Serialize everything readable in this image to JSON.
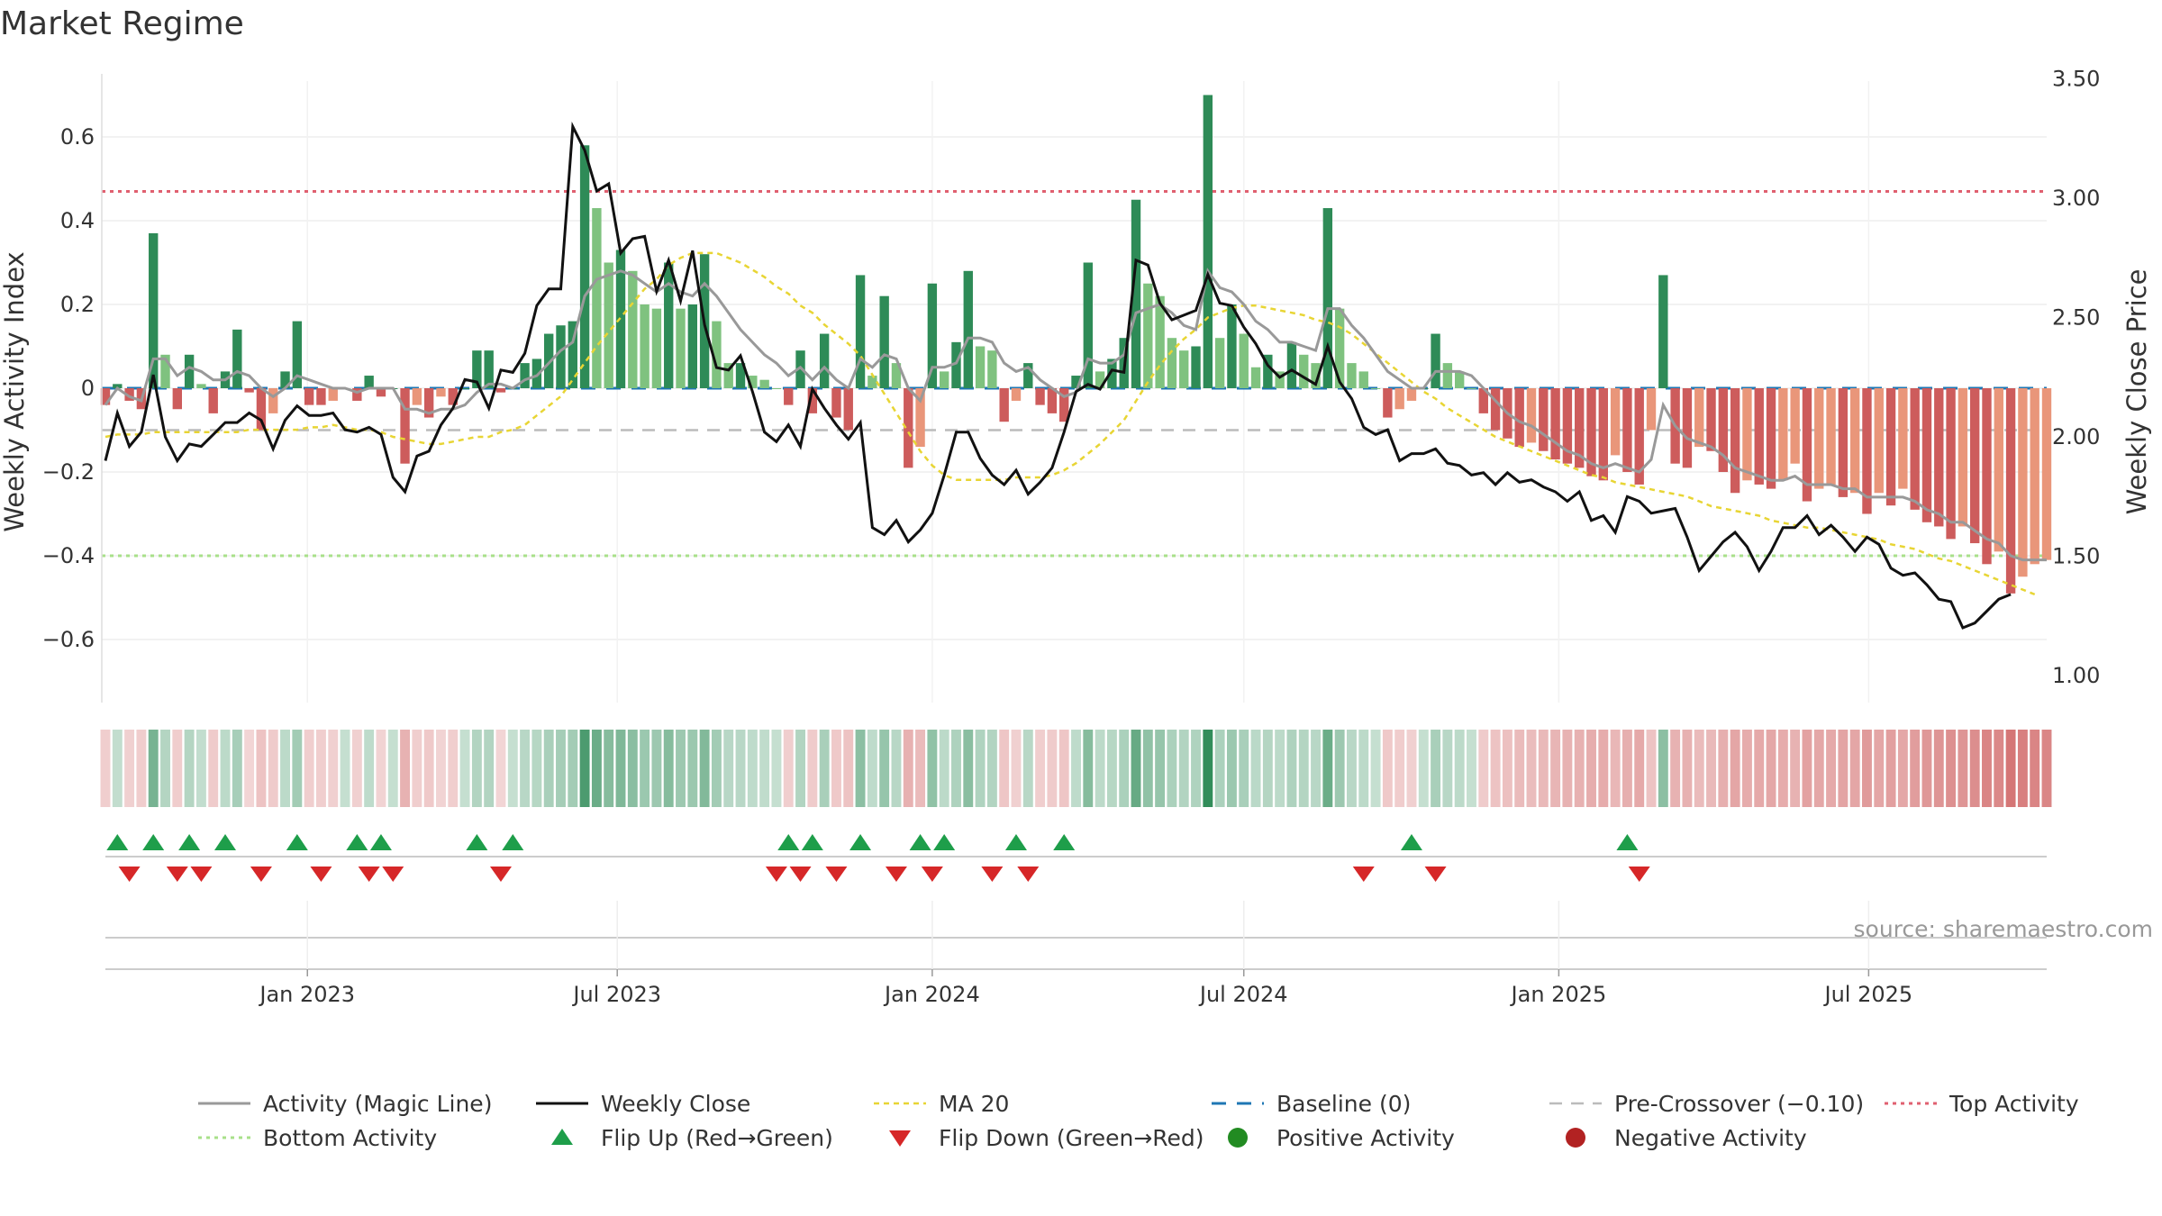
{
  "chart_data": {
    "type": "bar+line",
    "title": "Market Regime",
    "ylabel_left": "Weekly Activity Index",
    "ylabel_right": "Weekly Close Price",
    "source": "source: sharemaestro.com",
    "left_axis": {
      "ylim": [
        -0.75,
        0.75
      ],
      "ticks": [
        -0.6,
        -0.4,
        -0.2,
        0,
        0.2,
        0.4,
        0.6
      ],
      "tick_labels": [
        "−0.6",
        "−0.4",
        "−0.2",
        "0",
        "0.2",
        "0.4",
        "0.6"
      ]
    },
    "right_axis": {
      "ylim": [
        0.9,
        3.55
      ],
      "ticks": [
        1.0,
        1.5,
        2.0,
        2.5,
        3.0,
        3.5
      ],
      "tick_labels": [
        "1.00",
        "1.50",
        "2.00",
        "2.50",
        "3.00",
        "3.50"
      ]
    },
    "x_axis": {
      "start": "2022-09-05",
      "weeks": 161,
      "ticks": [
        {
          "date": "2023-01-01",
          "label": "Jan 2023"
        },
        {
          "date": "2023-07-01",
          "label": "Jul 2023"
        },
        {
          "date": "2024-01-01",
          "label": "Jan 2024"
        },
        {
          "date": "2024-07-01",
          "label": "Jul 2024"
        },
        {
          "date": "2025-01-01",
          "label": "Jan 2025"
        },
        {
          "date": "2025-07-01",
          "label": "Jul 2025"
        }
      ]
    },
    "reference_lines": {
      "baseline": 0,
      "pre_crossover": -0.1,
      "top_activity": 0.47,
      "bottom_activity": -0.4
    },
    "colors": {
      "strong_pos": "#2e8b57",
      "weak_pos": "#7fc27f",
      "strong_neg": "#cd5c5c",
      "weak_neg": "#e9967a",
      "close": "#111111",
      "magic": "#999999",
      "ma20": "#e8d534",
      "baseline": "#1f77b4",
      "pre": "#bbbbbb",
      "top": "#e06070",
      "bottom": "#a8e08a",
      "flip_up": "#1e9e4a",
      "flip_down": "#d62728",
      "pos_dot": "#228b22",
      "neg_dot": "#b22222"
    },
    "series": [
      {
        "name": "Activity",
        "values": [
          -0.04,
          0.01,
          -0.03,
          -0.05,
          0.37,
          0.08,
          -0.05,
          0.08,
          0.01,
          -0.06,
          0.04,
          0.14,
          -0.01,
          -0.1,
          -0.06,
          0.04,
          0.16,
          -0.04,
          -0.04,
          -0.03,
          0.0,
          -0.03,
          0.03,
          -0.02,
          0.0,
          -0.18,
          -0.04,
          -0.07,
          -0.02,
          -0.04,
          0.0,
          0.09,
          0.09,
          -0.01,
          0.0,
          0.06,
          0.07,
          0.13,
          0.15,
          0.16,
          0.58,
          0.43,
          0.3,
          0.33,
          0.28,
          0.2,
          0.19,
          0.3,
          0.19,
          0.2,
          0.32,
          0.16,
          0.06,
          0.06,
          0.03,
          0.02,
          0.0,
          -0.04,
          0.09,
          -0.06,
          0.13,
          -0.07,
          -0.1,
          0.27,
          0.03,
          0.22,
          0.06,
          -0.19,
          -0.14,
          0.25,
          0.04,
          0.11,
          0.28,
          0.1,
          0.09,
          -0.08,
          -0.03,
          0.06,
          -0.04,
          -0.06,
          -0.08,
          0.03,
          0.3,
          0.04,
          0.07,
          0.12,
          0.45,
          0.25,
          0.22,
          0.12,
          0.09,
          0.1,
          0.7,
          0.12,
          0.2,
          0.13,
          0.05,
          0.08,
          0.04,
          0.11,
          0.08,
          0.06,
          0.43,
          0.19,
          0.06,
          0.04,
          0.0,
          -0.07,
          -0.05,
          -0.03,
          0.0,
          0.13,
          0.06,
          0.04,
          0.0,
          -0.06,
          -0.1,
          -0.12,
          -0.14,
          -0.13,
          -0.15,
          -0.17,
          -0.18,
          -0.19,
          -0.21,
          -0.22,
          -0.16,
          -0.2,
          -0.23,
          -0.1,
          0.27,
          -0.18,
          -0.19,
          -0.14,
          -0.15,
          -0.2,
          -0.25,
          -0.22,
          -0.23,
          -0.24,
          -0.22,
          -0.18,
          -0.27,
          -0.24,
          -0.23,
          -0.26,
          -0.25,
          -0.3,
          -0.25,
          -0.28,
          -0.24,
          -0.29,
          -0.32,
          -0.33,
          -0.36,
          -0.33,
          -0.37,
          -0.42,
          -0.39,
          -0.49,
          -0.45,
          -0.42,
          -0.41
        ]
      },
      {
        "name": "Weekly Close",
        "values": [
          1.9,
          2.1,
          1.96,
          2.02,
          2.26,
          2.0,
          1.9,
          1.97,
          1.96,
          2.01,
          2.06,
          2.06,
          2.1,
          2.07,
          1.95,
          2.07,
          2.13,
          2.09,
          2.09,
          2.1,
          2.03,
          2.02,
          2.04,
          2.01,
          1.83,
          1.77,
          1.92,
          1.94,
          2.05,
          2.12,
          2.24,
          2.23,
          2.12,
          2.28,
          2.27,
          2.35,
          2.55,
          2.62,
          2.62,
          3.3,
          3.2,
          3.03,
          3.06,
          2.77,
          2.83,
          2.84,
          2.61,
          2.74,
          2.57,
          2.78,
          2.47,
          2.29,
          2.28,
          2.34,
          2.19,
          2.02,
          1.98,
          2.05,
          1.96,
          2.2,
          2.12,
          2.05,
          1.99,
          2.06,
          1.62,
          1.59,
          1.65,
          1.56,
          1.61,
          1.68,
          1.84,
          2.02,
          2.02,
          1.91,
          1.84,
          1.8,
          1.86,
          1.76,
          1.81,
          1.87,
          2.02,
          2.19,
          2.22,
          2.2,
          2.28,
          2.27,
          2.74,
          2.72,
          2.56,
          2.49,
          2.51,
          2.53,
          2.68,
          2.56,
          2.55,
          2.46,
          2.39,
          2.3,
          2.25,
          2.28,
          2.25,
          2.22,
          2.38,
          2.23,
          2.16,
          2.04,
          2.01,
          2.03,
          1.9,
          1.93,
          1.93,
          1.95,
          1.89,
          1.88,
          1.84,
          1.85,
          1.8,
          1.85,
          1.81,
          1.82,
          1.79,
          1.77,
          1.73,
          1.77,
          1.65,
          1.67,
          1.6,
          1.75,
          1.73,
          1.68,
          1.69,
          1.7,
          1.58,
          1.44,
          1.5,
          1.56,
          1.6,
          1.54,
          1.44,
          1.52,
          1.62,
          1.62,
          1.67,
          1.59,
          1.63,
          1.58,
          1.52,
          1.58,
          1.55,
          1.45,
          1.42,
          1.43,
          1.38,
          1.32,
          1.31,
          1.2,
          1.22,
          1.27,
          1.32,
          1.34
        ]
      },
      {
        "name": "Activity (Magic Line)",
        "values": [
          -0.04,
          0.0,
          -0.02,
          -0.03,
          0.07,
          0.07,
          0.03,
          0.05,
          0.04,
          0.02,
          0.02,
          0.04,
          0.03,
          0.0,
          -0.02,
          0.0,
          0.03,
          0.02,
          0.01,
          0.0,
          0.0,
          -0.01,
          0.0,
          0.0,
          0.0,
          -0.05,
          -0.05,
          -0.06,
          -0.05,
          -0.05,
          -0.04,
          -0.01,
          0.01,
          0.01,
          0.0,
          0.02,
          0.03,
          0.06,
          0.09,
          0.11,
          0.22,
          0.26,
          0.27,
          0.28,
          0.27,
          0.25,
          0.23,
          0.25,
          0.23,
          0.22,
          0.25,
          0.22,
          0.18,
          0.14,
          0.11,
          0.08,
          0.06,
          0.03,
          0.05,
          0.02,
          0.05,
          0.02,
          0.0,
          0.07,
          0.05,
          0.08,
          0.07,
          0.0,
          -0.03,
          0.05,
          0.05,
          0.06,
          0.12,
          0.12,
          0.11,
          0.06,
          0.04,
          0.05,
          0.02,
          0.0,
          -0.02,
          -0.01,
          0.07,
          0.06,
          0.06,
          0.08,
          0.18,
          0.19,
          0.2,
          0.18,
          0.15,
          0.14,
          0.28,
          0.24,
          0.23,
          0.2,
          0.16,
          0.14,
          0.11,
          0.11,
          0.1,
          0.09,
          0.19,
          0.19,
          0.15,
          0.12,
          0.08,
          0.04,
          0.02,
          0.0,
          0.0,
          0.04,
          0.04,
          0.04,
          0.03,
          0.0,
          -0.03,
          -0.06,
          -0.08,
          -0.09,
          -0.11,
          -0.13,
          -0.15,
          -0.16,
          -0.18,
          -0.19,
          -0.18,
          -0.19,
          -0.2,
          -0.17,
          -0.04,
          -0.09,
          -0.12,
          -0.13,
          -0.14,
          -0.16,
          -0.19,
          -0.2,
          -0.21,
          -0.22,
          -0.22,
          -0.21,
          -0.23,
          -0.23,
          -0.23,
          -0.24,
          -0.24,
          -0.26,
          -0.26,
          -0.26,
          -0.26,
          -0.27,
          -0.29,
          -0.3,
          -0.32,
          -0.32,
          -0.34,
          -0.36,
          -0.37,
          -0.4,
          -0.41,
          -0.41,
          -0.41
        ]
      },
      {
        "name": "MA 20",
        "values": [
          2.0,
          2.01,
          2.01,
          2.01,
          2.02,
          2.02,
          2.02,
          2.02,
          2.02,
          2.02,
          2.02,
          2.02,
          2.03,
          2.03,
          2.03,
          2.03,
          2.03,
          2.04,
          2.04,
          2.05,
          2.04,
          2.03,
          2.03,
          2.02,
          2.0,
          1.99,
          1.98,
          1.97,
          1.97,
          1.98,
          1.99,
          2.0,
          2.0,
          2.02,
          2.03,
          2.05,
          2.09,
          2.13,
          2.17,
          2.24,
          2.31,
          2.38,
          2.44,
          2.5,
          2.56,
          2.62,
          2.66,
          2.72,
          2.75,
          2.77,
          2.77,
          2.77,
          2.75,
          2.73,
          2.7,
          2.67,
          2.63,
          2.6,
          2.55,
          2.52,
          2.47,
          2.43,
          2.39,
          2.34,
          2.26,
          2.18,
          2.1,
          2.02,
          1.94,
          1.88,
          1.84,
          1.82,
          1.82,
          1.82,
          1.82,
          1.82,
          1.83,
          1.83,
          1.83,
          1.84,
          1.86,
          1.89,
          1.93,
          1.97,
          2.02,
          2.07,
          2.15,
          2.23,
          2.3,
          2.36,
          2.41,
          2.45,
          2.5,
          2.52,
          2.54,
          2.55,
          2.55,
          2.54,
          2.53,
          2.52,
          2.51,
          2.49,
          2.48,
          2.46,
          2.43,
          2.39,
          2.35,
          2.31,
          2.27,
          2.23,
          2.19,
          2.16,
          2.12,
          2.09,
          2.06,
          2.03,
          2.0,
          1.98,
          1.96,
          1.94,
          1.92,
          1.9,
          1.88,
          1.86,
          1.84,
          1.83,
          1.81,
          1.8,
          1.79,
          1.78,
          1.77,
          1.76,
          1.75,
          1.73,
          1.71,
          1.7,
          1.69,
          1.68,
          1.67,
          1.65,
          1.64,
          1.63,
          1.62,
          1.62,
          1.61,
          1.6,
          1.59,
          1.58,
          1.57,
          1.55,
          1.54,
          1.53,
          1.51,
          1.49,
          1.48,
          1.46,
          1.44,
          1.42,
          1.4,
          1.38,
          1.36,
          1.34
        ]
      }
    ],
    "flip_up_weeks": [
      1,
      4,
      7,
      10,
      16,
      21,
      23,
      31,
      34,
      57,
      59,
      63,
      68,
      70,
      76,
      80,
      109,
      127
    ],
    "flip_down_weeks": [
      2,
      6,
      8,
      13,
      18,
      22,
      24,
      33,
      56,
      58,
      61,
      66,
      69,
      74,
      77,
      105,
      111,
      128
    ],
    "legend": [
      "Activity (Magic Line)",
      "Weekly Close",
      "MA 20",
      "Baseline (0)",
      "Pre-Crossover (−0.10)",
      "Top Activity",
      "Bottom Activity",
      "Flip Up (Red→Green)",
      "Flip Down (Green→Red)",
      "Positive Activity",
      "Negative Activity"
    ]
  }
}
